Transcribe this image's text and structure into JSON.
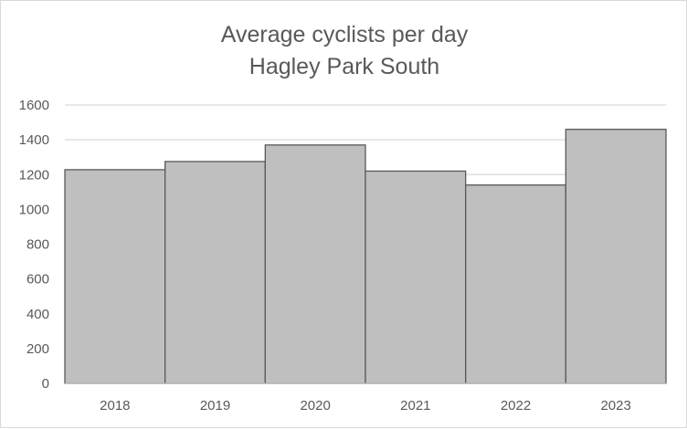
{
  "chart_data": {
    "type": "bar",
    "title": "Average cyclists per day",
    "subtitle": "Hagley Park South",
    "categories": [
      "2018",
      "2019",
      "2020",
      "2021",
      "2022",
      "2023"
    ],
    "series": [
      {
        "values": [
          1228,
          1275,
          1370,
          1220,
          1140,
          1460
        ]
      }
    ],
    "ylim": [
      0,
      1600
    ],
    "yticks": [
      0,
      200,
      400,
      600,
      800,
      1000,
      1200,
      1400,
      1600
    ],
    "grid": true,
    "legend": "none",
    "colors": {
      "bar_fill": "#bfbfbf",
      "bar_stroke": "#595959",
      "grid": "#d9d9d9",
      "axis": "#bfbfbf",
      "text": "#595959"
    }
  }
}
